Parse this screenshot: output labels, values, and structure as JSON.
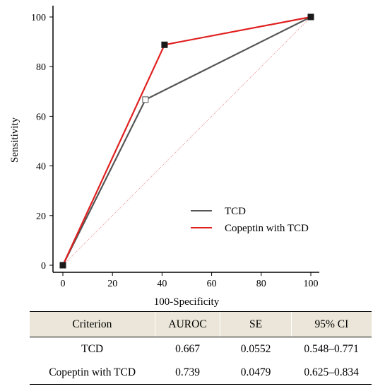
{
  "chart_data": {
    "type": "line",
    "xlabel": "100-Specificity",
    "ylabel": "Sensitivity",
    "xlim": [
      0,
      100
    ],
    "ylim": [
      0,
      100
    ],
    "xticks": [
      0,
      20,
      40,
      60,
      80,
      100
    ],
    "yticks": [
      0,
      20,
      40,
      60,
      80,
      100
    ],
    "grid": false,
    "legend_position": "bottom-right",
    "series": [
      {
        "name": "TCD",
        "color": "#555555",
        "marker": "open-square",
        "x": [
          0,
          33.3,
          100
        ],
        "y": [
          0,
          66.7,
          100
        ]
      },
      {
        "name": "Copeptin with TCD",
        "color": "#e02020",
        "marker": "filled-square",
        "x": [
          0,
          41,
          100
        ],
        "y": [
          0,
          88.8,
          100
        ]
      }
    ],
    "reference_line": {
      "color": "#e8a0a0",
      "x": [
        0,
        100
      ],
      "y": [
        0,
        100
      ]
    }
  },
  "table": {
    "headers": [
      "Criterion",
      "AUROC",
      "SE",
      "95% CI"
    ],
    "rows": [
      [
        "TCD",
        "0.667",
        "0.0552",
        "0.548–0.771"
      ],
      [
        "Copeptin with TCD",
        "0.739",
        "0.0479",
        "0.625–0.834"
      ]
    ]
  }
}
